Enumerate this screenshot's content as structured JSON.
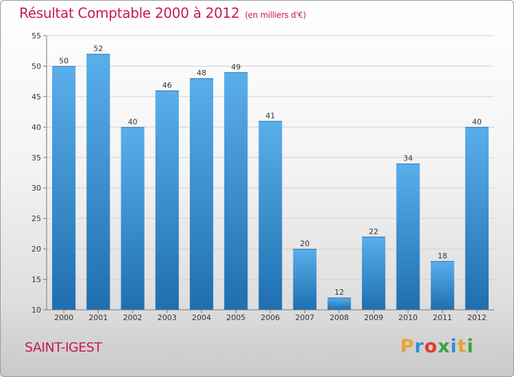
{
  "header": {
    "title": "Résultat Comptable 2000 à 2012",
    "subtitle": "(en milliers d'€)"
  },
  "footer": {
    "commune": "SAINT-IGEST",
    "brand": "Proxiti",
    "brand_colors": [
      "#e8a23a",
      "#2f8fd8",
      "#e23a2a",
      "#3f9f3f",
      "#2f8fd8",
      "#e8a23a",
      "#3f9f3f"
    ]
  },
  "colors": {
    "title": "#c8185c",
    "bar_light": "#5aaeea",
    "bar_dark": "#1f6fb0"
  },
  "chart_data": {
    "type": "bar",
    "categories": [
      "2000",
      "2001",
      "2002",
      "2003",
      "2004",
      "2005",
      "2006",
      "2007",
      "2008",
      "2009",
      "2010",
      "2011",
      "2012"
    ],
    "values": [
      50,
      52,
      40,
      46,
      48,
      49,
      41,
      20,
      12,
      22,
      34,
      18,
      40
    ],
    "ylim": [
      10,
      55
    ],
    "yticks": [
      10,
      15,
      20,
      25,
      30,
      35,
      40,
      45,
      50,
      55
    ],
    "grid": "horizontal",
    "legend": "none"
  }
}
